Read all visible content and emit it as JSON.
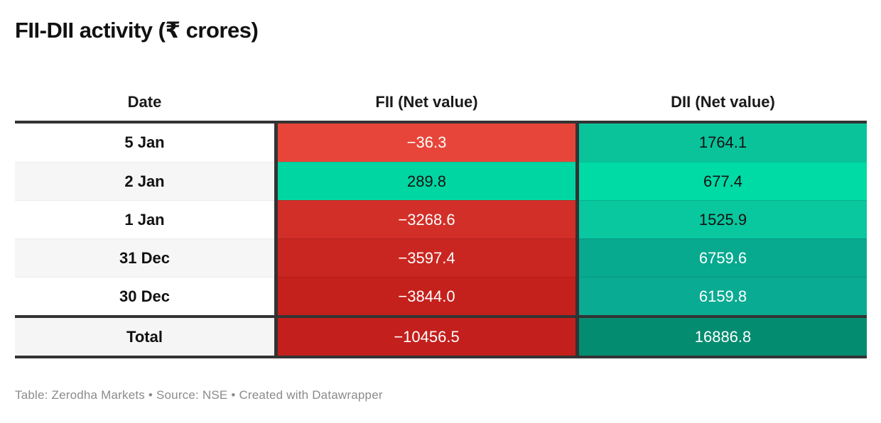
{
  "title": "FII-DII activity (₹ crores)",
  "footer": "Table: Zerodha Markets • Source: NSE • Created with Datawrapper",
  "colors": {
    "border_dark": "#333333",
    "date_separator": "#ececec",
    "footer_text": "#8b8b8b",
    "title_text": "#111111"
  },
  "table": {
    "columns": [
      "Date",
      "FII (Net value)",
      "DII (Net value)"
    ],
    "rows": [
      {
        "date": "5 Jan",
        "fii": "−36.3",
        "dii": "1764.1",
        "date_bg": "#ffffff",
        "fii_bg": "#e74539",
        "fii_fg": "#ffffff",
        "dii_bg": "#0ac39b",
        "dii_fg": "#111111",
        "is_total": false
      },
      {
        "date": "2 Jan",
        "fii": "289.8",
        "dii": "677.4",
        "date_bg": "#f6f6f6",
        "fii_bg": "#00d6a1",
        "fii_fg": "#111111",
        "dii_bg": "#00dba5",
        "dii_fg": "#111111",
        "is_total": false
      },
      {
        "date": "1 Jan",
        "fii": "−3268.6",
        "dii": "1525.9",
        "date_bg": "#ffffff",
        "fii_bg": "#d22f28",
        "fii_fg": "#ffffff",
        "dii_bg": "#09c79e",
        "dii_fg": "#111111",
        "is_total": false
      },
      {
        "date": "31 Dec",
        "fii": "−3597.4",
        "dii": "6759.6",
        "date_bg": "#f6f6f6",
        "fii_bg": "#ca2621",
        "fii_fg": "#ffffff",
        "dii_bg": "#07a98f",
        "dii_fg": "#ffffff",
        "is_total": false
      },
      {
        "date": "30 Dec",
        "fii": "−3844.0",
        "dii": "6159.8",
        "date_bg": "#ffffff",
        "fii_bg": "#c4201c",
        "fii_fg": "#ffffff",
        "dii_bg": "#0aab93",
        "dii_fg": "#ffffff",
        "is_total": false
      },
      {
        "date": "Total",
        "fii": "−10456.5",
        "dii": "16886.8",
        "date_bg": "#f5f5f5",
        "fii_bg": "#c31f1c",
        "fii_fg": "#ffffff",
        "dii_bg": "#038c70",
        "dii_fg": "#ffffff",
        "is_total": true
      }
    ]
  },
  "chart_data": {
    "type": "table",
    "title": "FII-DII activity (₹ crores)",
    "columns": [
      "Date",
      "FII (Net value)",
      "DII (Net value)"
    ],
    "rows": [
      [
        "5 Jan",
        -36.3,
        1764.1
      ],
      [
        "2 Jan",
        289.8,
        677.4
      ],
      [
        "1 Jan",
        -3268.6,
        1525.9
      ],
      [
        "31 Dec",
        -3597.4,
        6759.6
      ],
      [
        "30 Dec",
        -3844.0,
        6159.8
      ],
      [
        "Total",
        -10456.5,
        16886.8
      ]
    ],
    "legend_position": "none",
    "notes": "Cells shaded by value: red for negative, green/teal for positive; darker shade = larger magnitude"
  }
}
